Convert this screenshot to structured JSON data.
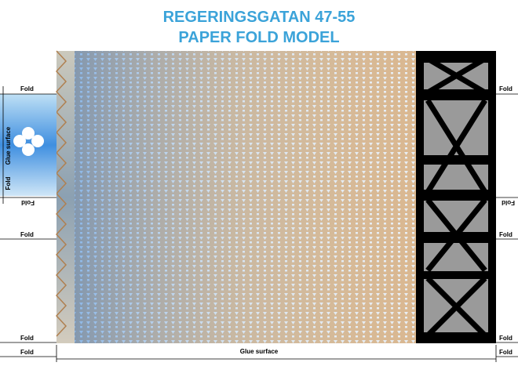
{
  "title": {
    "line1": "REGERINGSGATAN 47-55",
    "line2": "PAPER FOLD MODEL"
  },
  "left": {
    "fold_top": "Fold",
    "glue_surface": "Glue surface",
    "fold_vertical": "Fold",
    "fold_flipped": "Fold",
    "fold_mid": "Fold",
    "fold_bottom1": "Fold",
    "fold_bottom2": "Fold"
  },
  "right": {
    "fold_top": "Fold",
    "fold_flipped": "Fold",
    "fold_mid": "Fold",
    "fold_bottom1": "Fold",
    "fold_bottom2": "Fold"
  },
  "bottom": {
    "glue_surface": "Glue surface"
  }
}
